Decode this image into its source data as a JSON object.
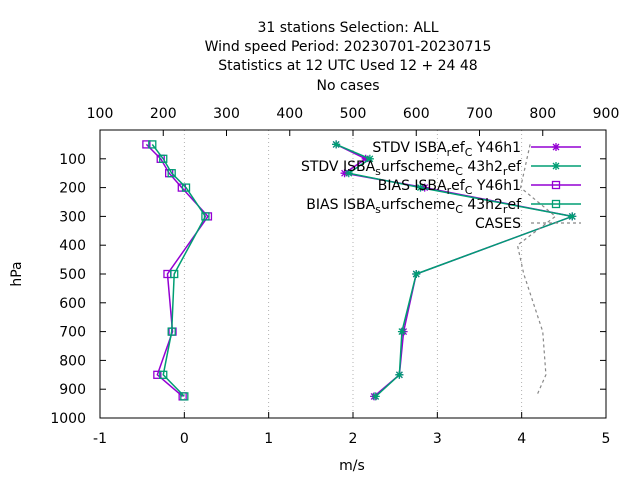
{
  "chart_data": {
    "type": "line",
    "title_lines": [
      "31 stations Selection: ALL",
      "Wind speed  Period: 20230701-20230715",
      "Statistics at 12 UTC  Used  12 + 24 48",
      "No cases"
    ],
    "xlabel": "m/s",
    "ylabel": "hPa",
    "xlim": [
      -1,
      5
    ],
    "x2lim": [
      100,
      900
    ],
    "ylim": [
      1000,
      0
    ],
    "x_ticks": [
      "-1",
      "0",
      "1",
      "2",
      "3",
      "4",
      "5"
    ],
    "x2_ticks": [
      "100",
      "200",
      "300",
      "400",
      "500",
      "600",
      "700",
      "800",
      "900"
    ],
    "y_ticks": [
      "100",
      "200",
      "300",
      "400",
      "500",
      "600",
      "700",
      "800",
      "900",
      "1000"
    ],
    "grid": "dotted vertical lines",
    "legend_position": "top-right",
    "series": [
      {
        "name": "STDV ISBA_ref_C Y46h1",
        "legend_parts": [
          "STDV ISBA",
          "r",
          "ef",
          "C",
          " Y46h1"
        ],
        "color": "#9400d3",
        "marker": "star",
        "axis": "x",
        "points": [
          [
            1.8,
            50
          ],
          [
            2.15,
            100
          ],
          [
            1.9,
            150
          ],
          [
            2.85,
            200
          ],
          [
            4.6,
            300
          ],
          [
            2.75,
            500
          ],
          [
            2.6,
            700
          ],
          [
            2.55,
            850
          ],
          [
            2.25,
            925
          ]
        ]
      },
      {
        "name": "STDV ISBA_surfscheme_C 43h2_ref",
        "legend_parts": [
          "STDV ISBA",
          "s",
          "urfscheme",
          "C",
          " 43h2",
          "r",
          "ef"
        ],
        "color": "#009e73",
        "marker": "star",
        "axis": "x",
        "points": [
          [
            1.8,
            50
          ],
          [
            2.2,
            100
          ],
          [
            1.95,
            150
          ],
          [
            2.8,
            200
          ],
          [
            4.6,
            300
          ],
          [
            2.75,
            500
          ],
          [
            2.58,
            700
          ],
          [
            2.55,
            850
          ],
          [
            2.27,
            925
          ]
        ]
      },
      {
        "name": "BIAS ISBA_ref_C Y46h1",
        "legend_parts": [
          "BIAS ISBA",
          "r",
          "ef",
          "C",
          " Y46h1"
        ],
        "color": "#9400d3",
        "marker": "square",
        "axis": "x",
        "points": [
          [
            -0.45,
            50
          ],
          [
            -0.28,
            100
          ],
          [
            -0.18,
            150
          ],
          [
            -0.03,
            200
          ],
          [
            0.28,
            300
          ],
          [
            -0.2,
            500
          ],
          [
            -0.14,
            700
          ],
          [
            -0.32,
            850
          ],
          [
            -0.02,
            925
          ]
        ]
      },
      {
        "name": "BIAS ISBA_surfscheme_C 43h2_ref",
        "legend_parts": [
          "BIAS ISBA",
          "s",
          "urfscheme",
          "C",
          " 43h2",
          "r",
          "ef"
        ],
        "color": "#009e73",
        "marker": "square",
        "axis": "x",
        "points": [
          [
            -0.38,
            50
          ],
          [
            -0.25,
            100
          ],
          [
            -0.15,
            150
          ],
          [
            0.02,
            200
          ],
          [
            0.25,
            300
          ],
          [
            -0.12,
            500
          ],
          [
            -0.15,
            700
          ],
          [
            -0.25,
            850
          ],
          [
            0.0,
            925
          ]
        ]
      },
      {
        "name": "CASES",
        "legend_parts": [
          "CASES"
        ],
        "color": "#888888",
        "marker": "none",
        "dashed": true,
        "axis": "x2",
        "points": [
          [
            780,
            50
          ],
          [
            775,
            100
          ],
          [
            770,
            150
          ],
          [
            765,
            200
          ],
          [
            820,
            300
          ],
          [
            760,
            400
          ],
          [
            770,
            500
          ],
          [
            785,
            600
          ],
          [
            800,
            700
          ],
          [
            805,
            850
          ],
          [
            790,
            925
          ]
        ]
      }
    ]
  }
}
